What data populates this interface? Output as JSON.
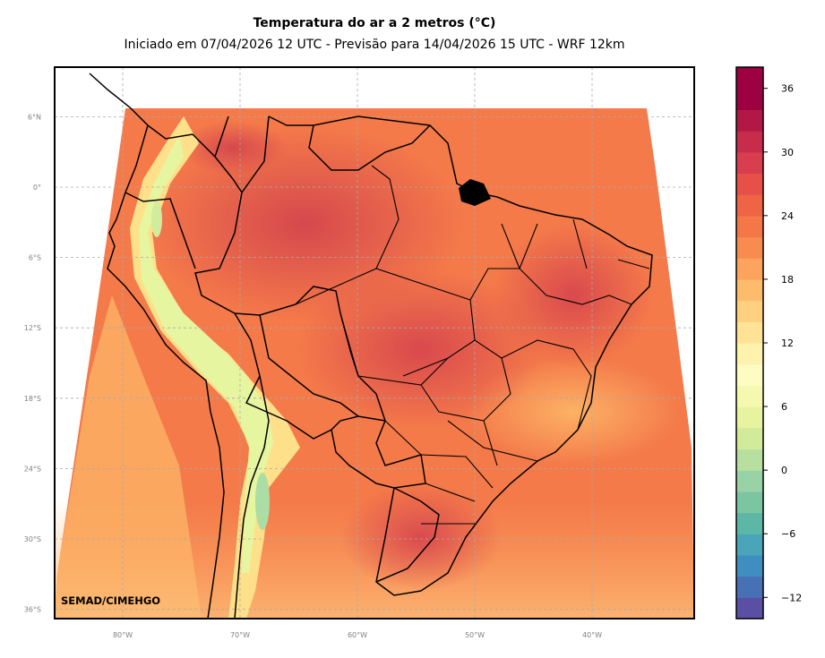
{
  "title": "Temperatura do ar a 2 metros (°C)",
  "subtitle": "Iniciado em 07/04/2026 12 UTC - Previsão para 14/04/2026 15 UTC - WRF 12km",
  "credit": "SEMAD/CIMEHGO",
  "map": {
    "region": "South America / Brazil",
    "variable": "2 m air temperature",
    "lon_range": [
      -86,
      -31.5
    ],
    "lat_range": [
      -37,
      10.5
    ],
    "gridlines": true,
    "lat_ticks": [
      {
        "value": 6,
        "label": "6°N"
      },
      {
        "value": 0,
        "label": "0°"
      },
      {
        "value": -6,
        "label": "6°S"
      },
      {
        "value": -12,
        "label": "12°S"
      },
      {
        "value": -18,
        "label": "18°S"
      },
      {
        "value": -24,
        "label": "24°S"
      },
      {
        "value": -30,
        "label": "30°S"
      },
      {
        "value": -36,
        "label": "36°S"
      }
    ],
    "lon_ticks": [
      {
        "value": -80,
        "label": "80°W"
      },
      {
        "value": -70,
        "label": "70°W"
      },
      {
        "value": -60,
        "label": "60°W"
      },
      {
        "value": -50,
        "label": "50°W"
      },
      {
        "value": -40,
        "label": "40°W"
      }
    ]
  },
  "colorbar": {
    "min": -14,
    "max": 38,
    "step": 2,
    "ticks": [
      {
        "value": 36,
        "label": "36"
      },
      {
        "value": 30,
        "label": "30"
      },
      {
        "value": 24,
        "label": "24"
      },
      {
        "value": 18,
        "label": "18"
      },
      {
        "value": 12,
        "label": "12"
      },
      {
        "value": 6,
        "label": "6"
      },
      {
        "value": 0,
        "label": "0"
      },
      {
        "value": -6,
        "label": "−6"
      },
      {
        "value": -12,
        "label": "−12"
      }
    ],
    "colors": [
      "#5a4fa2",
      "#4870b4",
      "#3f8ec0",
      "#4aa5b8",
      "#5db7a7",
      "#7cc5a2",
      "#99d2a4",
      "#b7df9f",
      "#d2eb9b",
      "#e8f39f",
      "#f5f9b0",
      "#fdfcc3",
      "#fef3ad",
      "#fee396",
      "#fed080",
      "#fdbb6c",
      "#fca35d",
      "#f98b4f",
      "#f47747",
      "#ee6445",
      "#e65048",
      "#d93e4f",
      "#c82c4b",
      "#b21846",
      "#9e0142",
      "#9e0142"
    ]
  }
}
